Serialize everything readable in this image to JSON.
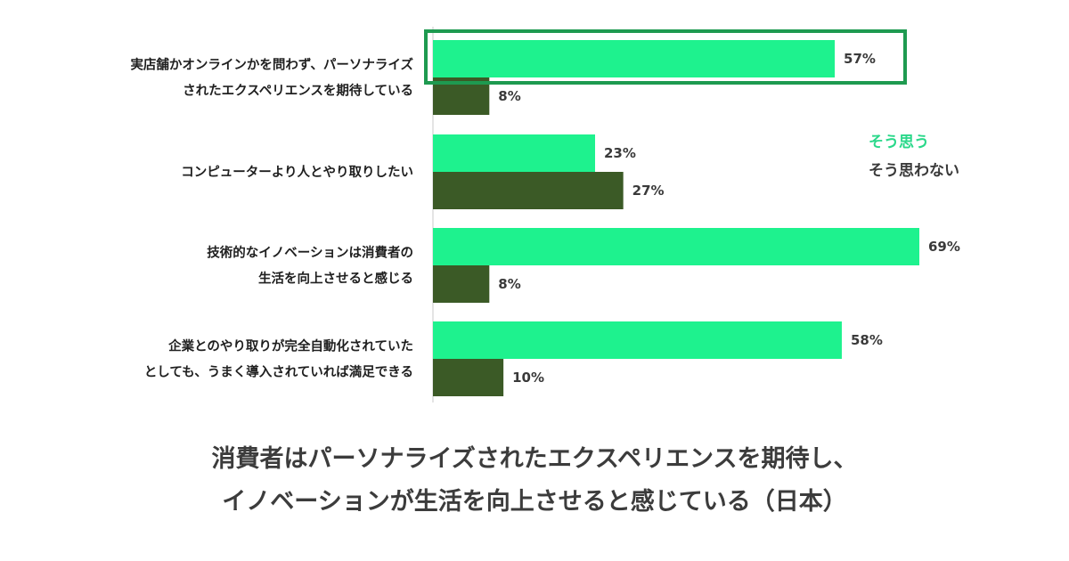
{
  "chart_data": {
    "type": "bar",
    "orientation": "horizontal",
    "categories": [
      [
        "実店舗かオンラインかを問わず、パーソナライズ",
        "されたエクスペリエンスを期待している"
      ],
      [
        "コンピューターより人とやり取りしたい"
      ],
      [
        "技術的なイノベーションは消費者の",
        "生活を向上させると感じる"
      ],
      [
        "企業とのやり取りが完全自動化されていた",
        "としても、うまく導入されていれば満足できる"
      ]
    ],
    "series": [
      {
        "name": "そう思う",
        "values": [
          57,
          23,
          69,
          58
        ],
        "color": "#1ef28e"
      },
      {
        "name": "そう思わない",
        "values": [
          8,
          27,
          8,
          10
        ],
        "color": "#3b5a26"
      }
    ],
    "value_suffix": "%",
    "highlight_category": 0,
    "highlight_color": "#1e9a50",
    "legend_position": "right",
    "grid": false,
    "xlim": [
      0,
      100
    ]
  },
  "caption": {
    "line1": "消費者はパーソナライズされたエクスペリエンスを期待し、",
    "line2": "イノベーションが生活を向上させると感じている（日本）"
  }
}
